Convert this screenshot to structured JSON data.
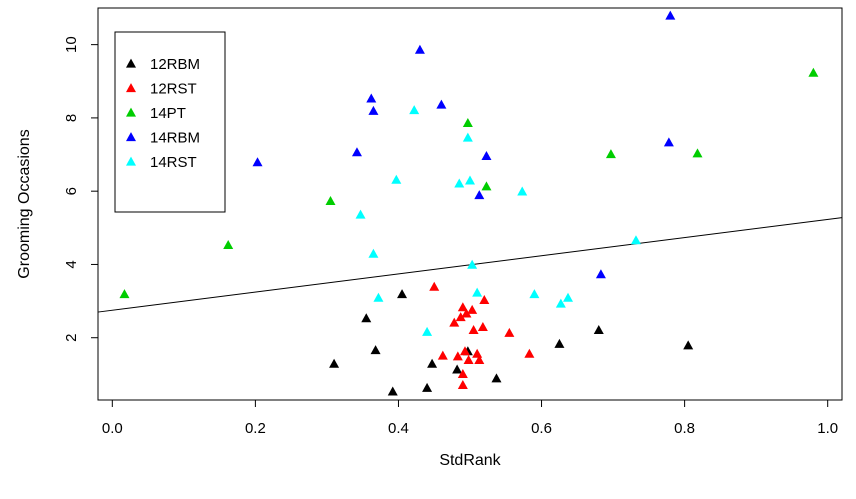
{
  "chart_data": {
    "type": "scatter",
    "title": "",
    "xlabel": "StdRank",
    "ylabel": "Grooming Occasions",
    "xlim": [
      -0.02,
      1.02
    ],
    "ylim": [
      0.3,
      11.0
    ],
    "x_ticks": [
      "0.0",
      "0.2",
      "0.4",
      "0.6",
      "0.8",
      "1.0"
    ],
    "y_ticks": [
      "2",
      "4",
      "6",
      "8",
      "10"
    ],
    "legend_position": "top-left",
    "marker": "filled-triangle",
    "trend_line": {
      "intercept": 2.75,
      "slope": 2.48
    },
    "series": [
      {
        "name": "12RBM",
        "color": "#000000",
        "points": [
          [
            0.31,
            1.28
          ],
          [
            0.355,
            2.52
          ],
          [
            0.368,
            1.65
          ],
          [
            0.392,
            0.52
          ],
          [
            0.405,
            3.18
          ],
          [
            0.44,
            0.62
          ],
          [
            0.447,
            1.28
          ],
          [
            0.482,
            1.12
          ],
          [
            0.497,
            1.62
          ],
          [
            0.537,
            0.88
          ],
          [
            0.625,
            1.82
          ],
          [
            0.68,
            2.2
          ],
          [
            0.805,
            1.78
          ]
        ]
      },
      {
        "name": "12RST",
        "color": "#ff0000",
        "points": [
          [
            0.45,
            3.38
          ],
          [
            0.462,
            1.5
          ],
          [
            0.478,
            2.4
          ],
          [
            0.483,
            1.48
          ],
          [
            0.487,
            2.55
          ],
          [
            0.49,
            2.82
          ],
          [
            0.49,
            1.0
          ],
          [
            0.49,
            0.7
          ],
          [
            0.493,
            1.62
          ],
          [
            0.495,
            2.65
          ],
          [
            0.498,
            1.38
          ],
          [
            0.503,
            2.75
          ],
          [
            0.505,
            2.2
          ],
          [
            0.51,
            1.55
          ],
          [
            0.513,
            1.38
          ],
          [
            0.518,
            2.28
          ],
          [
            0.52,
            3.02
          ],
          [
            0.555,
            2.12
          ],
          [
            0.583,
            1.55
          ]
        ]
      },
      {
        "name": "14PT",
        "color": "#00cd00",
        "points": [
          [
            0.017,
            3.18
          ],
          [
            0.162,
            4.52
          ],
          [
            0.305,
            5.72
          ],
          [
            0.497,
            7.85
          ],
          [
            0.523,
            6.12
          ],
          [
            0.697,
            7.0
          ],
          [
            0.818,
            7.02
          ],
          [
            0.98,
            9.22
          ]
        ]
      },
      {
        "name": "14RBM",
        "color": "#0000ff",
        "points": [
          [
            0.203,
            6.78
          ],
          [
            0.342,
            7.05
          ],
          [
            0.362,
            8.52
          ],
          [
            0.365,
            8.18
          ],
          [
            0.43,
            9.85
          ],
          [
            0.46,
            8.35
          ],
          [
            0.513,
            5.88
          ],
          [
            0.523,
            6.95
          ],
          [
            0.683,
            3.72
          ],
          [
            0.778,
            7.32
          ],
          [
            0.78,
            10.78
          ]
        ]
      },
      {
        "name": "14RST",
        "color": "#00ffff",
        "points": [
          [
            0.347,
            5.35
          ],
          [
            0.365,
            4.28
          ],
          [
            0.372,
            3.08
          ],
          [
            0.397,
            6.3
          ],
          [
            0.422,
            8.2
          ],
          [
            0.44,
            2.15
          ],
          [
            0.485,
            6.2
          ],
          [
            0.497,
            7.45
          ],
          [
            0.5,
            6.28
          ],
          [
            0.503,
            3.98
          ],
          [
            0.51,
            3.22
          ],
          [
            0.573,
            5.98
          ],
          [
            0.59,
            3.18
          ],
          [
            0.627,
            2.92
          ],
          [
            0.637,
            3.08
          ],
          [
            0.732,
            4.65
          ]
        ]
      }
    ]
  }
}
